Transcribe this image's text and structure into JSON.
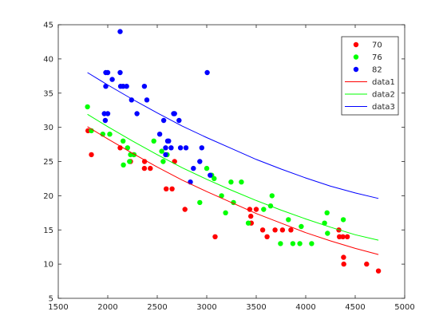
{
  "chart_data": {
    "type": "scatter",
    "xlim": [
      1500,
      5000
    ],
    "ylim": [
      5,
      45
    ],
    "x_ticks": [
      "1500",
      "2000",
      "2500",
      "3000",
      "3500",
      "4000",
      "4500",
      "5000"
    ],
    "y_ticks": [
      "5",
      "10",
      "15",
      "20",
      "25",
      "30",
      "35",
      "40",
      "45"
    ],
    "grid": false,
    "legend_position": "top-right",
    "series": [
      {
        "name": "70",
        "kind": "scatter",
        "color": "#ff0000",
        "points": [
          [
            1835,
            26
          ],
          [
            1800,
            29.5
          ],
          [
            2125,
            27
          ],
          [
            2230,
            25
          ],
          [
            2264,
            26
          ],
          [
            2370,
            24
          ],
          [
            2372,
            25
          ],
          [
            2430,
            24
          ],
          [
            2590,
            21
          ],
          [
            2650,
            21
          ],
          [
            2675,
            25
          ],
          [
            2780,
            18
          ],
          [
            3085,
            14
          ],
          [
            3435,
            18
          ],
          [
            3445,
            17
          ],
          [
            3450,
            16
          ],
          [
            3500,
            18
          ],
          [
            3565,
            15
          ],
          [
            3610,
            14
          ],
          [
            3690,
            15
          ],
          [
            3765,
            15
          ],
          [
            3850,
            15
          ],
          [
            4335,
            15
          ],
          [
            4340,
            14
          ],
          [
            4385,
            10
          ],
          [
            4382,
            11
          ],
          [
            4376,
            14
          ],
          [
            4420,
            14
          ],
          [
            4615,
            10
          ],
          [
            4735,
            9
          ]
        ]
      },
      {
        "name": "76",
        "kind": "scatter",
        "color": "#00ff00",
        "points": [
          [
            1795,
            33
          ],
          [
            1835,
            29.5
          ],
          [
            1950,
            29
          ],
          [
            2020,
            29
          ],
          [
            2155,
            28
          ],
          [
            2200,
            27
          ],
          [
            2230,
            26
          ],
          [
            2158,
            24.5
          ],
          [
            2220,
            25
          ],
          [
            2265,
            26
          ],
          [
            2465,
            28
          ],
          [
            2545,
            26.5
          ],
          [
            2560,
            25
          ],
          [
            2600,
            26
          ],
          [
            2930,
            19
          ],
          [
            3000,
            24
          ],
          [
            3050,
            23
          ],
          [
            3075,
            22.5
          ],
          [
            3150,
            20
          ],
          [
            3190,
            17.5
          ],
          [
            3245,
            22
          ],
          [
            3270,
            19
          ],
          [
            3350,
            22
          ],
          [
            3420,
            16
          ],
          [
            3575,
            18
          ],
          [
            3645,
            18.5
          ],
          [
            3660,
            20
          ],
          [
            3745,
            13
          ],
          [
            3825,
            16.5
          ],
          [
            3870,
            13
          ],
          [
            3940,
            13
          ],
          [
            3955,
            15.5
          ],
          [
            4060,
            13
          ],
          [
            4190,
            16
          ],
          [
            4215,
            17.5
          ],
          [
            4220,
            14.5
          ],
          [
            4380,
            16.5
          ]
        ]
      },
      {
        "name": "82",
        "kind": "scatter",
        "color": "#0000ff",
        "points": [
          [
            1965,
            32
          ],
          [
            1975,
            31
          ],
          [
            1980,
            36
          ],
          [
            1980,
            38
          ],
          [
            2000,
            38
          ],
          [
            2000,
            32
          ],
          [
            2045,
            37
          ],
          [
            2125,
            44
          ],
          [
            2125,
            38
          ],
          [
            2130,
            36
          ],
          [
            2155,
            36
          ],
          [
            2190,
            36
          ],
          [
            2240,
            34
          ],
          [
            2295,
            32
          ],
          [
            2370,
            36
          ],
          [
            2395,
            34
          ],
          [
            2525,
            29
          ],
          [
            2565,
            31
          ],
          [
            2585,
            27
          ],
          [
            2585,
            26
          ],
          [
            2605,
            28
          ],
          [
            2615,
            28
          ],
          [
            2640,
            27
          ],
          [
            2665,
            32
          ],
          [
            2675,
            32
          ],
          [
            2720,
            31
          ],
          [
            2735,
            27
          ],
          [
            2790,
            27
          ],
          [
            2835,
            22
          ],
          [
            2865,
            24
          ],
          [
            2930,
            25
          ],
          [
            2950,
            27
          ],
          [
            3005,
            38
          ],
          [
            3035,
            23
          ]
        ]
      },
      {
        "name": "data1",
        "kind": "line",
        "color": "#ff0000",
        "points": [
          [
            1795,
            30.1
          ],
          [
            2000,
            28.3
          ],
          [
            2250,
            26.2
          ],
          [
            2500,
            24.2
          ],
          [
            2750,
            22.3
          ],
          [
            3000,
            20.6
          ],
          [
            3250,
            19.0
          ],
          [
            3500,
            17.4
          ],
          [
            3750,
            16.0
          ],
          [
            4000,
            14.6
          ],
          [
            4250,
            13.4
          ],
          [
            4500,
            12.3
          ],
          [
            4735,
            11.4
          ]
        ]
      },
      {
        "name": "data2",
        "kind": "line",
        "color": "#00ff00",
        "points": [
          [
            1795,
            31.9
          ],
          [
            2000,
            30.1
          ],
          [
            2250,
            28.0
          ],
          [
            2500,
            26.0
          ],
          [
            2750,
            24.1
          ],
          [
            3000,
            22.4
          ],
          [
            3250,
            20.8
          ],
          [
            3500,
            19.3
          ],
          [
            3750,
            17.9
          ],
          [
            4000,
            16.6
          ],
          [
            4250,
            15.4
          ],
          [
            4500,
            14.3
          ],
          [
            4735,
            13.5
          ]
        ]
      },
      {
        "name": "data3",
        "kind": "line",
        "color": "#0000ff",
        "points": [
          [
            1795,
            38.0
          ],
          [
            2000,
            36.2
          ],
          [
            2250,
            34.1
          ],
          [
            2500,
            32.1
          ],
          [
            2750,
            30.2
          ],
          [
            3000,
            28.5
          ],
          [
            3250,
            26.9
          ],
          [
            3500,
            25.3
          ],
          [
            3750,
            23.9
          ],
          [
            4000,
            22.6
          ],
          [
            4250,
            21.4
          ],
          [
            4500,
            20.4
          ],
          [
            4735,
            19.6
          ]
        ]
      }
    ]
  }
}
